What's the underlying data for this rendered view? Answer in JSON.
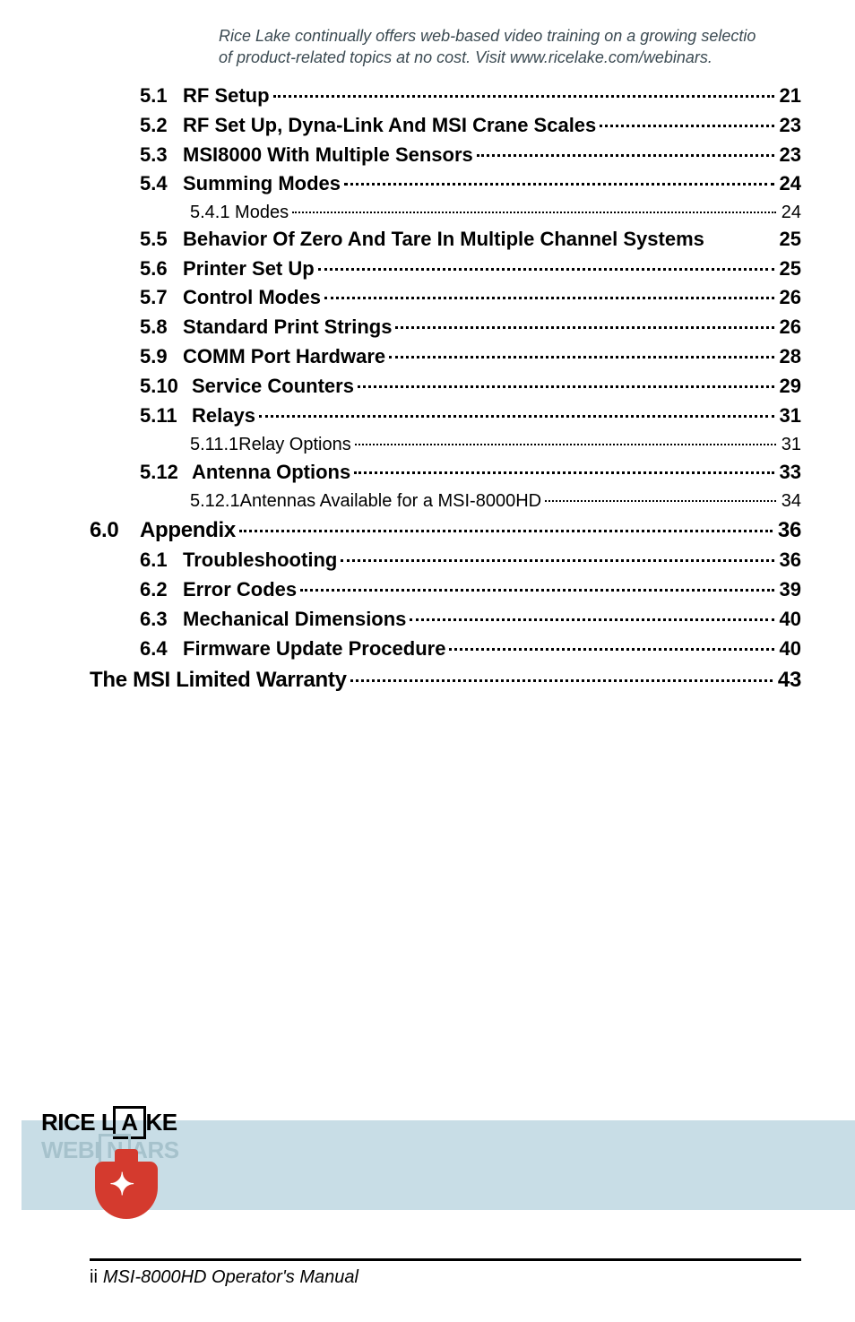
{
  "toc": {
    "sec5_items": [
      {
        "n": "5.1",
        "t": "RF Setup",
        "p": "21",
        "lvl": 2
      },
      {
        "n": "5.2",
        "t": "RF Set Up, Dyna-Link And MSI Crane Scales",
        "p": "23",
        "lvl": 2
      },
      {
        "n": "5.3",
        "t": "MSI8000 With Multiple Sensors",
        "p": "23",
        "lvl": 2
      },
      {
        "n": "5.4",
        "t": "Summing Modes",
        "p": "24",
        "lvl": 2
      },
      {
        "n": "",
        "t": "5.4.1 Modes",
        "p": "24",
        "lvl": 3
      },
      {
        "n": "5.5",
        "t": "Behavior Of Zero And Tare In Multiple Channel Systems",
        "p": "25",
        "lvl": 2,
        "nolead": true
      },
      {
        "n": "5.6",
        "t": "Printer Set Up",
        "p": "25",
        "lvl": 2
      },
      {
        "n": "5.7",
        "t": "Control Modes",
        "p": "26",
        "lvl": 2
      },
      {
        "n": "5.8",
        "t": "Standard Print Strings",
        "p": "26",
        "lvl": 2
      },
      {
        "n": "5.9",
        "t": "COMM Port Hardware",
        "p": "28",
        "lvl": 2
      },
      {
        "n": "5.10",
        "t": "Service Counters",
        "p": "29",
        "lvl": 2,
        "combine": true
      },
      {
        "n": "5.11",
        "t": "Relays",
        "p": "31",
        "lvl": 2,
        "combine": true
      },
      {
        "n": "",
        "t": "5.11.1Relay Options",
        "p": "31",
        "lvl": 3
      },
      {
        "n": "5.12",
        "t": "Antenna Options",
        "p": "33",
        "lvl": 2,
        "combine": true
      },
      {
        "n": "",
        "t": "5.12.1Antennas Available for a MSI-8000HD",
        "p": "34",
        "lvl": 3
      }
    ],
    "sec6": {
      "n": "6.0",
      "t": "Appendix",
      "p": "36"
    },
    "sec6_items": [
      {
        "n": "6.1",
        "t": "Troubleshooting",
        "p": "36"
      },
      {
        "n": "6.2",
        "t": "Error Codes",
        "p": "39"
      },
      {
        "n": "6.3",
        "t": "Mechanical Dimensions",
        "p": " 40"
      },
      {
        "n": "6.4",
        "t": "Firmware Update Procedure",
        "p": "40"
      }
    ],
    "warranty": {
      "t": "The MSI Limited Warranty",
      "p": "43"
    }
  },
  "promo": {
    "line1": "Rice Lake continually offers web-based video training on a growing selectio",
    "line2": "of product-related topics at no cost. Visit www.ricelake.com/webinars."
  },
  "logo": {
    "brand": "RICE L",
    "box": "A",
    "tail": "KE",
    "brand2": "WEBI",
    "box2": "N",
    "tail2": "ARS"
  },
  "footer": {
    "page": "ii",
    "title": "MSI-8000HD Operator's Manual"
  }
}
